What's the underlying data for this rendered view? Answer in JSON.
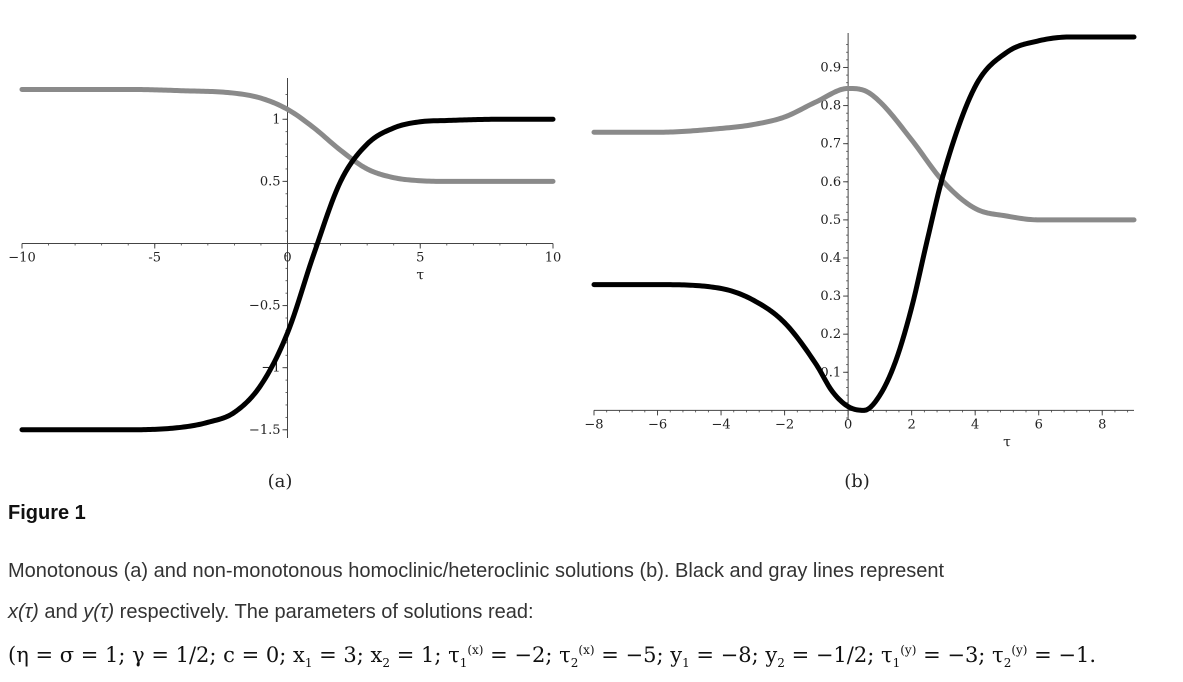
{
  "figure_title": "Figure 1",
  "caption": {
    "line1": "Monotonous (a) and non-monotonous homoclinic/heteroclinic solutions (b). Black and gray lines represent",
    "x_label": "x(τ)",
    "and": " and ",
    "y_label": "y(τ)",
    "line2_rest": " respectively. The parameters of solutions read:",
    "params": {
      "open": "(η = σ = 1; γ = 1/2; c = 0; x",
      "x1_sub": "1",
      "x1_rest": " = 3; x",
      "x2_sub": "2",
      "x2_rest": " = 1; τ",
      "t1x_sub": "1",
      "t1x_sup": "(x)",
      "t1x_rest": " = −2; τ",
      "t2x_sub": "2",
      "t2x_sup": "(x)",
      "t2x_rest": " = −5; y",
      "y1_sub": "1",
      "y1_rest": " = −8; y",
      "y2_sub": "2",
      "y2_rest": " = −1/2; τ",
      "t1y_sub": "1",
      "t1y_sup": "(y)",
      "t1y_rest": " = −3; τ",
      "t2y_sub": "2",
      "t2y_sup": "(y)",
      "close": " = −1."
    }
  },
  "colors": {
    "x_series": "#000000",
    "y_series": "#8a8a8a",
    "axis": "#444444"
  },
  "chart_data": [
    {
      "type": "line",
      "panel_label": "(a)",
      "xlabel": "τ",
      "ylabel": "",
      "xlim": [
        -10,
        10
      ],
      "ylim": [
        -1.55,
        1.3
      ],
      "xticks": [
        -10,
        -5,
        0,
        5,
        10
      ],
      "xtick_labels": [
        "−10",
        "-5",
        "0",
        "5",
        "10"
      ],
      "yticks": [
        -1.5,
        -1,
        -0.5,
        0.5,
        1
      ],
      "ytick_labels": [
        "−1.5",
        "−1",
        "−0.5",
        "0.5",
        "1"
      ],
      "grid": false,
      "series": [
        {
          "role": "x",
          "color": "#000000",
          "x": [
            -10,
            -8,
            -6,
            -4,
            -3,
            -2,
            -1,
            0,
            1,
            2,
            3,
            4,
            5,
            6,
            8,
            10
          ],
          "y": [
            -1.5,
            -1.5,
            -1.5,
            -1.48,
            -1.44,
            -1.36,
            -1.14,
            -0.72,
            -0.08,
            0.5,
            0.8,
            0.93,
            0.98,
            0.99,
            1.0,
            1.0
          ]
        },
        {
          "role": "y",
          "color": "#8a8a8a",
          "x": [
            -10,
            -6,
            -4,
            -2,
            -1,
            0,
            1,
            2,
            3,
            4,
            5,
            6,
            8,
            10
          ],
          "y": [
            1.24,
            1.24,
            1.23,
            1.21,
            1.17,
            1.08,
            0.93,
            0.75,
            0.6,
            0.53,
            0.505,
            0.5,
            0.5,
            0.5
          ]
        }
      ]
    },
    {
      "type": "line",
      "panel_label": "(b)",
      "xlabel": "τ",
      "ylabel": "",
      "xlim": [
        -8,
        9
      ],
      "ylim": [
        -0.02,
        0.98
      ],
      "xticks": [
        -8,
        -6,
        -4,
        -2,
        0,
        2,
        4,
        6,
        8
      ],
      "xtick_labels": [
        "−8",
        "−6",
        "−4",
        "−2",
        "0",
        "2",
        "4",
        "6",
        "8"
      ],
      "yticks": [
        0.1,
        0.2,
        0.3,
        0.4,
        0.5,
        0.6,
        0.7,
        0.8,
        0.9
      ],
      "ytick_labels": [
        "0.1",
        "0.2",
        "0.3",
        "0.4",
        "0.5",
        "0.6",
        "0.7",
        "0.8",
        "0.9"
      ],
      "grid": false,
      "series": [
        {
          "role": "x",
          "color": "#000000",
          "x": [
            -8,
            -6,
            -4,
            -3,
            -2,
            -1,
            -0.5,
            0,
            0.5,
            1,
            1.5,
            2,
            2.5,
            3,
            4,
            5,
            6,
            7,
            8,
            9
          ],
          "y": [
            0.33,
            0.33,
            0.32,
            0.29,
            0.23,
            0.12,
            0.05,
            0.01,
            0.0,
            0.04,
            0.13,
            0.27,
            0.45,
            0.62,
            0.85,
            0.94,
            0.97,
            0.98,
            0.98,
            0.98
          ]
        },
        {
          "role": "y",
          "color": "#8a8a8a",
          "x": [
            -8,
            -6,
            -4,
            -3,
            -2,
            -1,
            0,
            0.5,
            1,
            2,
            3,
            4,
            5,
            6,
            7,
            8,
            9
          ],
          "y": [
            0.73,
            0.73,
            0.74,
            0.75,
            0.77,
            0.81,
            0.845,
            0.84,
            0.81,
            0.71,
            0.6,
            0.53,
            0.51,
            0.5,
            0.5,
            0.5,
            0.5
          ]
        }
      ]
    }
  ]
}
